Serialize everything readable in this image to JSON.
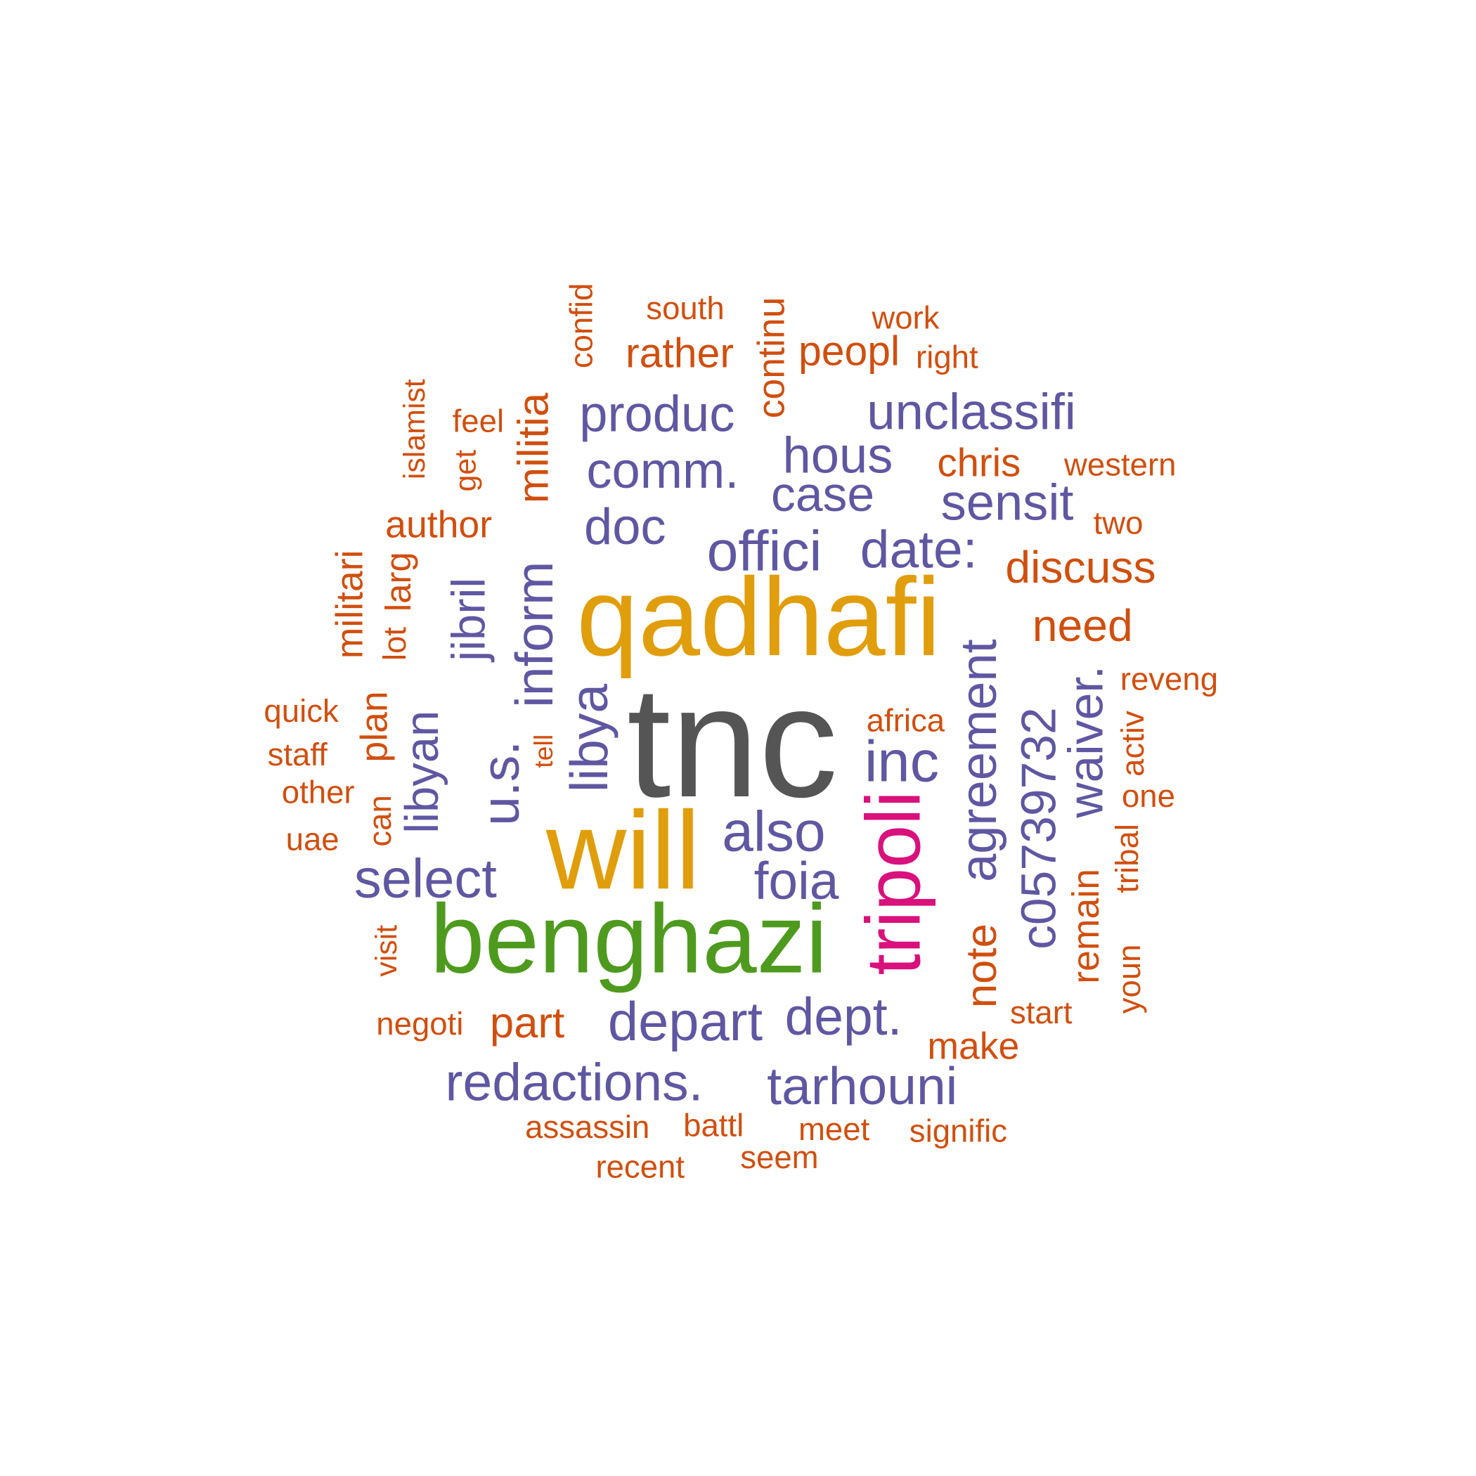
{
  "colors": {
    "grey": "#555555",
    "gold": "#E09E0C",
    "green": "#4E9A1E",
    "magenta": "#D8117C",
    "purple": "#5F57A1",
    "orange": "#D04F0E"
  },
  "words": [
    {
      "text": "tnc",
      "color": "grey"
    },
    {
      "text": "qadhafi",
      "color": "gold"
    },
    {
      "text": "will",
      "color": "gold"
    },
    {
      "text": "benghazi",
      "color": "green"
    },
    {
      "text": "tripoli",
      "color": "magenta"
    },
    {
      "text": "inc",
      "color": "purple"
    },
    {
      "text": "also",
      "color": "purple"
    },
    {
      "text": "foia",
      "color": "purple"
    },
    {
      "text": "select",
      "color": "purple"
    },
    {
      "text": "depart",
      "color": "purple"
    },
    {
      "text": "dept.",
      "color": "purple"
    },
    {
      "text": "redactions.",
      "color": "purple"
    },
    {
      "text": "tarhouni",
      "color": "purple"
    },
    {
      "text": "produc",
      "color": "purple"
    },
    {
      "text": "comm.",
      "color": "purple"
    },
    {
      "text": "doc",
      "color": "purple"
    },
    {
      "text": "offici",
      "color": "purple"
    },
    {
      "text": "date:",
      "color": "purple"
    },
    {
      "text": "hous",
      "color": "purple"
    },
    {
      "text": "case",
      "color": "purple"
    },
    {
      "text": "unclassifi",
      "color": "purple"
    },
    {
      "text": "sensit",
      "color": "purple"
    },
    {
      "text": "libya",
      "color": "purple"
    },
    {
      "text": "inform",
      "color": "purple"
    },
    {
      "text": "u.s.",
      "color": "purple"
    },
    {
      "text": "jibril",
      "color": "purple"
    },
    {
      "text": "libyan",
      "color": "purple"
    },
    {
      "text": "agreement",
      "color": "purple"
    },
    {
      "text": "c05739732",
      "color": "purple"
    },
    {
      "text": "waiver.",
      "color": "purple"
    },
    {
      "text": "militia",
      "color": "orange"
    },
    {
      "text": "note",
      "color": "orange"
    },
    {
      "text": "remain",
      "color": "orange"
    },
    {
      "text": "discuss",
      "color": "orange"
    },
    {
      "text": "need",
      "color": "orange"
    },
    {
      "text": "author",
      "color": "orange"
    },
    {
      "text": "rather",
      "color": "orange"
    },
    {
      "text": "peopl",
      "color": "orange"
    },
    {
      "text": "chris",
      "color": "orange"
    },
    {
      "text": "part",
      "color": "orange"
    },
    {
      "text": "make",
      "color": "orange"
    },
    {
      "text": "south",
      "color": "orange"
    },
    {
      "text": "work",
      "color": "orange"
    },
    {
      "text": "right",
      "color": "orange"
    },
    {
      "text": "western",
      "color": "orange"
    },
    {
      "text": "two",
      "color": "orange"
    },
    {
      "text": "reveng",
      "color": "orange"
    },
    {
      "text": "africa",
      "color": "orange"
    },
    {
      "text": "one",
      "color": "orange"
    },
    {
      "text": "start",
      "color": "orange"
    },
    {
      "text": "feel",
      "color": "orange"
    },
    {
      "text": "quick",
      "color": "orange"
    },
    {
      "text": "staff",
      "color": "orange"
    },
    {
      "text": "other",
      "color": "orange"
    },
    {
      "text": "uae",
      "color": "orange"
    },
    {
      "text": "negoti",
      "color": "orange"
    },
    {
      "text": "assassin",
      "color": "orange"
    },
    {
      "text": "battl",
      "color": "orange"
    },
    {
      "text": "meet",
      "color": "orange"
    },
    {
      "text": "signific",
      "color": "orange"
    },
    {
      "text": "seem",
      "color": "orange"
    },
    {
      "text": "recent",
      "color": "orange"
    },
    {
      "text": "confid",
      "color": "orange"
    },
    {
      "text": "continu",
      "color": "orange"
    },
    {
      "text": "islamist",
      "color": "orange"
    },
    {
      "text": "get",
      "color": "orange"
    },
    {
      "text": "militari",
      "color": "orange"
    },
    {
      "text": "larg",
      "color": "orange"
    },
    {
      "text": "lot",
      "color": "orange"
    },
    {
      "text": "plan",
      "color": "orange"
    },
    {
      "text": "can",
      "color": "orange"
    },
    {
      "text": "visit",
      "color": "orange"
    },
    {
      "text": "tell",
      "color": "orange"
    },
    {
      "text": "activ",
      "color": "orange"
    },
    {
      "text": "tribal",
      "color": "orange"
    },
    {
      "text": "youn",
      "color": "orange"
    }
  ]
}
